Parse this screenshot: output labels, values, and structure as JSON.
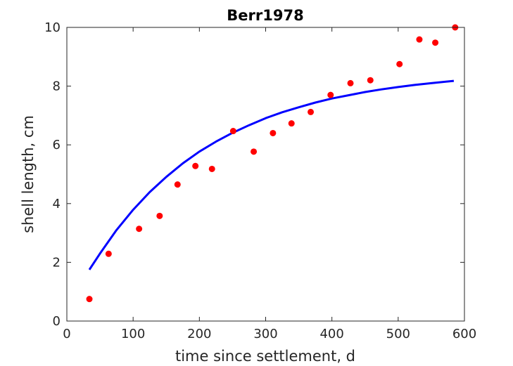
{
  "chart_data": {
    "type": "scatter",
    "title": "Berr1978",
    "xlabel": "time since settlement, d",
    "ylabel": "shell length, cm",
    "xlim": [
      0,
      600
    ],
    "ylim": [
      0,
      10
    ],
    "xticks": [
      0,
      100,
      200,
      300,
      400,
      500,
      600
    ],
    "yticks": [
      0,
      2,
      4,
      6,
      8,
      10
    ],
    "grid": false,
    "legend": "none",
    "series": [
      {
        "kind": "scatter",
        "color": "#ff0000",
        "x": [
          34,
          63,
          109,
          140,
          167,
          194,
          219,
          251,
          282,
          311,
          339,
          368,
          398,
          428,
          458,
          502,
          532,
          556,
          586
        ],
        "y": [
          0.75,
          2.29,
          3.14,
          3.58,
          4.65,
          5.28,
          5.18,
          6.47,
          5.77,
          6.4,
          6.73,
          7.12,
          7.7,
          8.1,
          8.2,
          8.75,
          9.59,
          9.48,
          10.0
        ]
      },
      {
        "kind": "line",
        "color": "#0000ff",
        "x": [
          34,
          50,
          75,
          100,
          125,
          150,
          175,
          200,
          225,
          250,
          275,
          300,
          325,
          350,
          375,
          400,
          425,
          450,
          475,
          500,
          525,
          550,
          584
        ],
        "y": [
          1.75,
          2.3,
          3.1,
          3.79,
          4.39,
          4.91,
          5.37,
          5.77,
          6.11,
          6.41,
          6.67,
          6.91,
          7.11,
          7.28,
          7.44,
          7.58,
          7.69,
          7.8,
          7.89,
          7.97,
          8.04,
          8.1,
          8.18
        ]
      }
    ]
  }
}
